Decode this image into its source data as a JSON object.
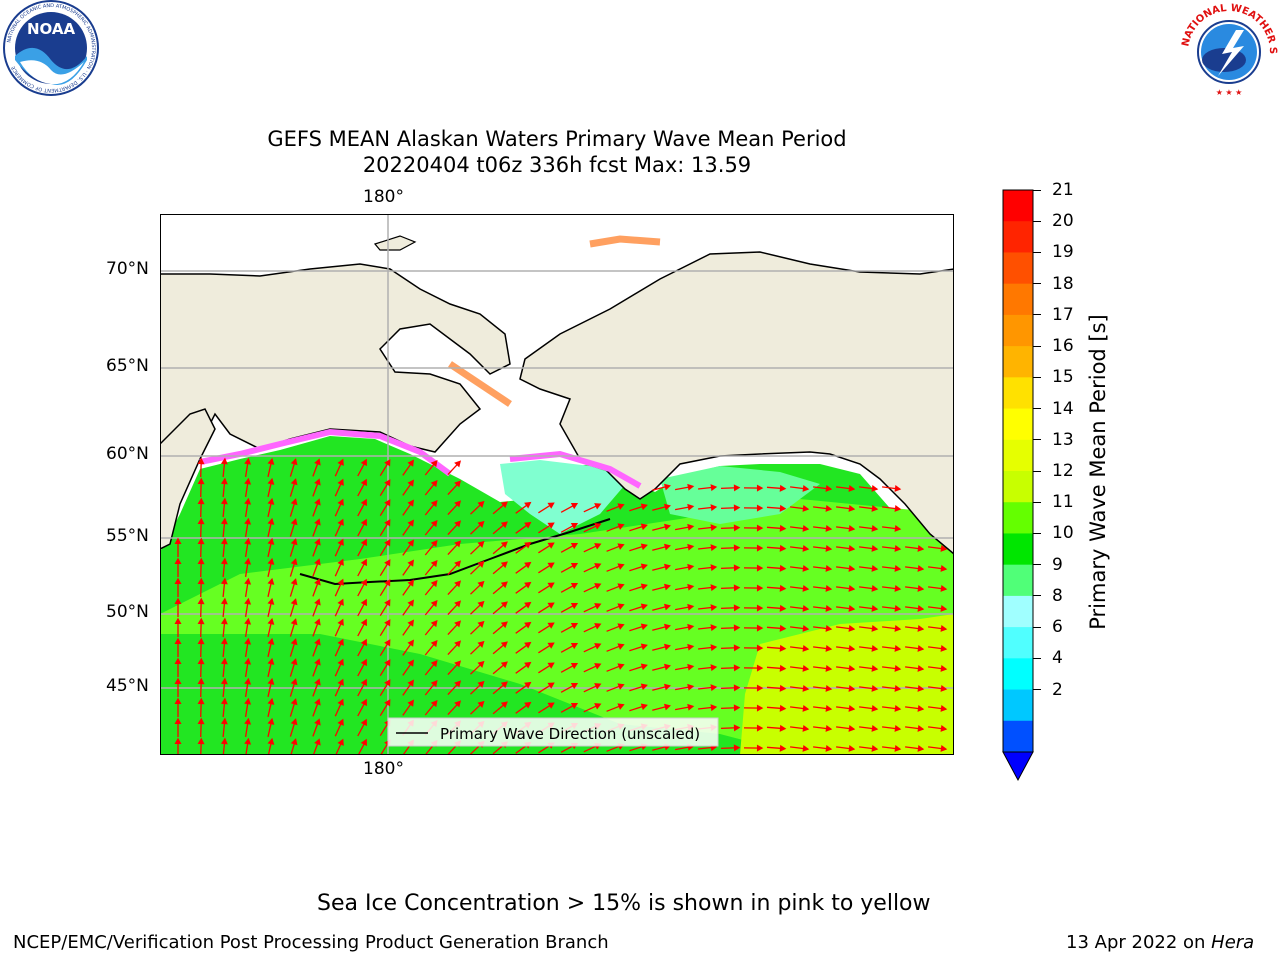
{
  "title_line1": "GEFS MEAN Alaskan Waters Primary Wave Mean Period",
  "title_line2": "20220404 t06z 336h fcst   Max: 13.59",
  "lon_label_top": "180°",
  "lon_label_bottom": "180°",
  "lat_labels": [
    "70°N",
    "65°N",
    "60°N",
    "55°N",
    "50°N",
    "45°N"
  ],
  "legend_label": "Primary Wave Direction (unscaled)",
  "colorbar": {
    "title": "Primary Wave Mean Period [s]",
    "ticks": [
      "21",
      "20",
      "19",
      "18",
      "17",
      "16",
      "15",
      "14",
      "13",
      "12",
      "11",
      "10",
      "9",
      "8",
      "6",
      "4",
      "2"
    ],
    "colors": [
      "#ff0000",
      "#ff2400",
      "#ff5000",
      "#ff7800",
      "#ff9600",
      "#ffb400",
      "#ffe100",
      "#ffff00",
      "#e6ff00",
      "#c8ff00",
      "#64ff00",
      "#00e600",
      "#50ff78",
      "#a0ffff",
      "#50ffff",
      "#00ffff",
      "#00c8ff",
      "#0050ff"
    ],
    "extend_color": "#0000ff"
  },
  "colors": {
    "land": "#efecdc",
    "ocean_green": "#22e622",
    "ocean_light_green": "#66ff22",
    "ocean_yellow_green": "#c8ff00",
    "ice_pink": "#ff66ff",
    "ice_orange": "#ffa060",
    "arrow": "#ff0000",
    "grid": "#b0b0b0"
  },
  "note": "Sea Ice Concentration > 15% is shown in pink to yellow",
  "footer_left": "NCEP/EMC/Verification Post Processing Product Generation Branch",
  "footer_date": "13 Apr 2022 on ",
  "footer_machine": "Hera",
  "logo_noaa": {
    "name": "NOAA",
    "ring_text": "NATIONAL OCEANIC AND ATMOSPHERIC ADMINISTRATION · U.S. DEPARTMENT OF COMMERCE"
  },
  "logo_nws": {
    "ring_text": "NATIONAL WEATHER SERVICE"
  }
}
